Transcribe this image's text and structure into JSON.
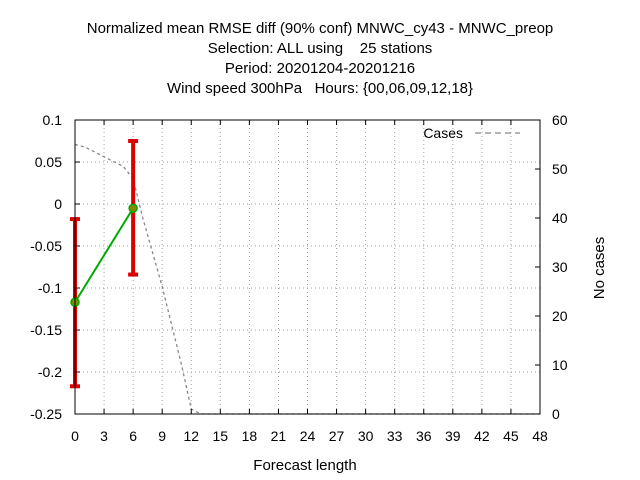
{
  "chart_data": {
    "type": "line",
    "title_lines": [
      "Normalized mean RMSE diff (90% conf) MNWC_cy43 - MNWC_preop",
      "Selection: ALL using    25 stations",
      "Period: 20201204-20201216",
      "Wind speed 300hPa   Hours: {00,06,09,12,18}"
    ],
    "xlabel": "Forecast length",
    "ylabel": "",
    "y2label": "No cases",
    "xlim": [
      0,
      48
    ],
    "ylim": [
      -0.25,
      0.1
    ],
    "y2lim": [
      0,
      60
    ],
    "x_ticks": [
      0,
      3,
      6,
      9,
      12,
      15,
      18,
      21,
      24,
      27,
      30,
      33,
      36,
      39,
      42,
      45,
      48
    ],
    "y_ticks": [
      0.1,
      0.05,
      0,
      -0.05,
      -0.1,
      -0.15,
      -0.2,
      -0.25
    ],
    "y_tick_labels": [
      "0.1",
      "0.05",
      "0",
      "-0.05",
      "-0.1",
      "-0.15",
      "-0.2",
      "-0.25"
    ],
    "y2_ticks": [
      0,
      10,
      20,
      30,
      40,
      50,
      60
    ],
    "grid": true,
    "legend": {
      "position": "top-right",
      "label": "Cases"
    },
    "series": [
      {
        "role": "diff",
        "color": "#00aa00",
        "marker_color": "#888800",
        "points": [
          {
            "x": 0,
            "y": -0.117,
            "low": -0.217,
            "high": -0.018
          },
          {
            "x": 6,
            "y": -0.005,
            "low": -0.084,
            "high": 0.075
          }
        ]
      },
      {
        "name": "Cases",
        "axis": "y2",
        "color": "#888888",
        "style": "dashed",
        "x": [
          0,
          1,
          2,
          3,
          4,
          5,
          6,
          7,
          8,
          9,
          10,
          11,
          12,
          13,
          48
        ],
        "y": [
          55,
          54.5,
          53.5,
          52.5,
          51.5,
          50.5,
          48,
          40,
          33,
          26,
          18,
          10,
          1,
          0,
          0
        ]
      }
    ],
    "error_bar_color": "#dd0000"
  }
}
